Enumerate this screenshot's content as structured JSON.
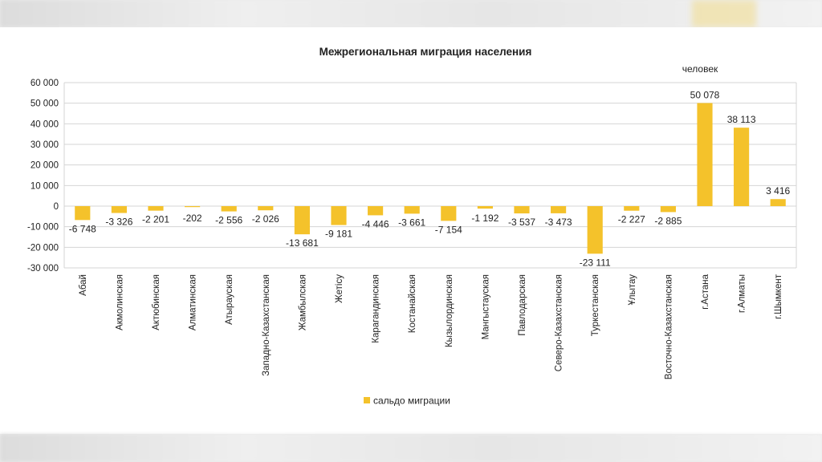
{
  "colors": {
    "bar": "#f4c22b",
    "grid": "#d4d4d4",
    "text": "#222222"
  },
  "chart_data": {
    "type": "bar",
    "title": "Межрегиональная миграция населения",
    "unit_label": "человек",
    "categories": [
      "Абай",
      "Акмолинская",
      "Актюбинская",
      "Алматинская",
      "Атырауская",
      "Западно-Казахстанская",
      "Жамбылская",
      "Жетісу",
      "Карагандинская",
      "Костанайская",
      "Кызылординская",
      "Мангыстауская",
      "Павлодарская",
      "Северо-Казахстанская",
      "Туркестанская",
      "Ұлытау",
      "Восточно-Казахстанская",
      "г.Астана",
      "г.Алматы",
      "г.Шымкент"
    ],
    "series": [
      {
        "name": "сальдо миграции",
        "values": [
          -6748,
          -3326,
          -2201,
          -202,
          -2556,
          -2026,
          -13681,
          -9181,
          -4446,
          -3661,
          -7154,
          -1192,
          -3537,
          -3473,
          -23111,
          -2227,
          -2885,
          50078,
          38113,
          3416
        ]
      }
    ],
    "data_labels": [
      "-6 748",
      "-3 326",
      "-2 201",
      "-202",
      "-2 556",
      "-2 026",
      "-13 681",
      "-9 181",
      "-4 446",
      "-3 661",
      "-7 154",
      "-1 192",
      "-3 537",
      "-3 473",
      "-23 111",
      "-2 227",
      "-2 885",
      "50 078",
      "38 113",
      "3 416"
    ],
    "ylim": [
      -30000,
      60000
    ],
    "yticks": [
      60000,
      50000,
      40000,
      30000,
      20000,
      10000,
      0,
      -10000,
      -20000,
      -30000
    ],
    "ytick_labels": [
      "60 000",
      "50 000",
      "40 000",
      "30 000",
      "20 000",
      "10 000",
      "0",
      "-10 000",
      "-20 000",
      "-30 000"
    ],
    "grid": true,
    "legend": {
      "position": "bottom",
      "entries": [
        "сальдо миграции"
      ]
    }
  }
}
